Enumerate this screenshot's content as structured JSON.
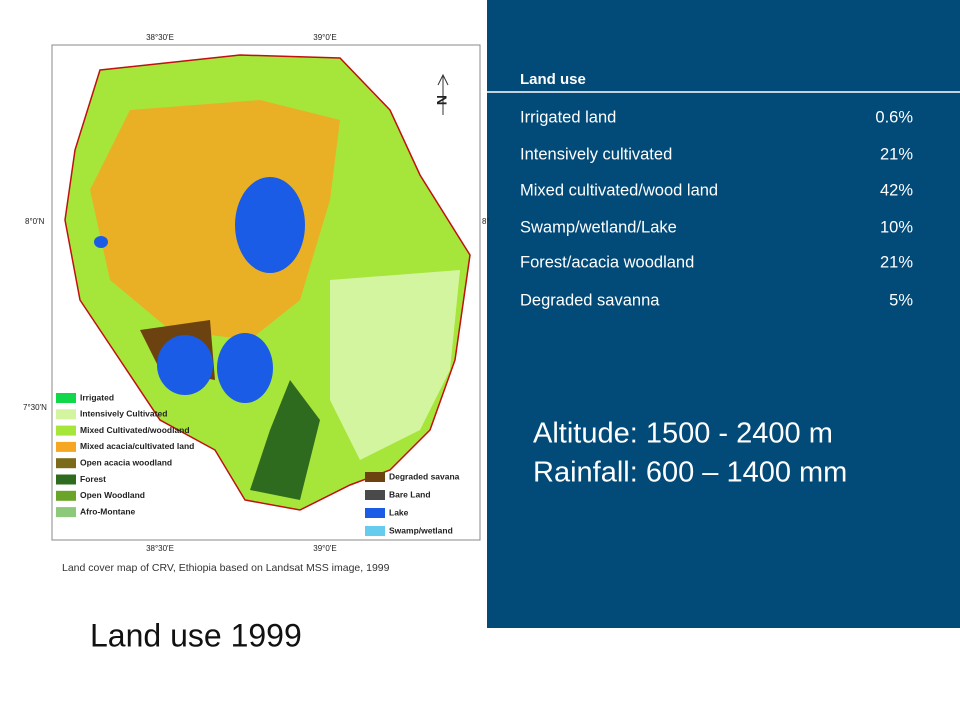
{
  "map": {
    "coords": {
      "top": [
        "38°30'E",
        "39°0'E"
      ],
      "bottom": [
        "38°30'E",
        "39°0'E"
      ],
      "left": [
        "8°0'N",
        "7°30'N"
      ],
      "right": [
        "8°"
      ]
    },
    "north": "N",
    "legend": [
      {
        "label": "Irrigated",
        "color": "#10d84a"
      },
      {
        "label": "Intensively Cultivated",
        "color": "#d4f5a0"
      },
      {
        "label": "Mixed Cultivated/woodland",
        "color": "#a6e63a"
      },
      {
        "label": "Mixed acacia/cultivated land",
        "color": "#f5a623"
      },
      {
        "label": "Open acacia woodland",
        "color": "#7a6a1a"
      },
      {
        "label": "Forest",
        "color": "#2e6b1e"
      },
      {
        "label": "Open Woodland",
        "color": "#6aa52a"
      },
      {
        "label": "Afro-Montane",
        "color": "#8dc97a"
      }
    ],
    "legend2": [
      {
        "label": "Degraded savana",
        "color": "#6b4210"
      },
      {
        "label": "Bare Land",
        "color": "#4a4a4a"
      },
      {
        "label": "Lake",
        "color": "#1a5ce6"
      },
      {
        "label": "Swamp/wetland",
        "color": "#66ccee"
      }
    ],
    "caption": "Land cover map of CRV, Ethiopia based on Landsat MSS image, 1999"
  },
  "table": {
    "header": "Land use",
    "rows": [
      [
        "Irrigated land",
        "0.6%"
      ],
      [
        "Intensively cultivated",
        "21%"
      ],
      [
        "Mixed cultivated/wood land",
        "42%"
      ],
      [
        "Swamp/wetland/Lake",
        "10%"
      ],
      [
        "Forest/acacia woodland",
        "21%"
      ],
      [
        "Degraded savanna",
        "5%"
      ]
    ]
  },
  "climate": [
    "Altitude: 1500 - 2400 m",
    "Rainfall: 600 – 1400 mm"
  ],
  "title": "Land use 1999"
}
